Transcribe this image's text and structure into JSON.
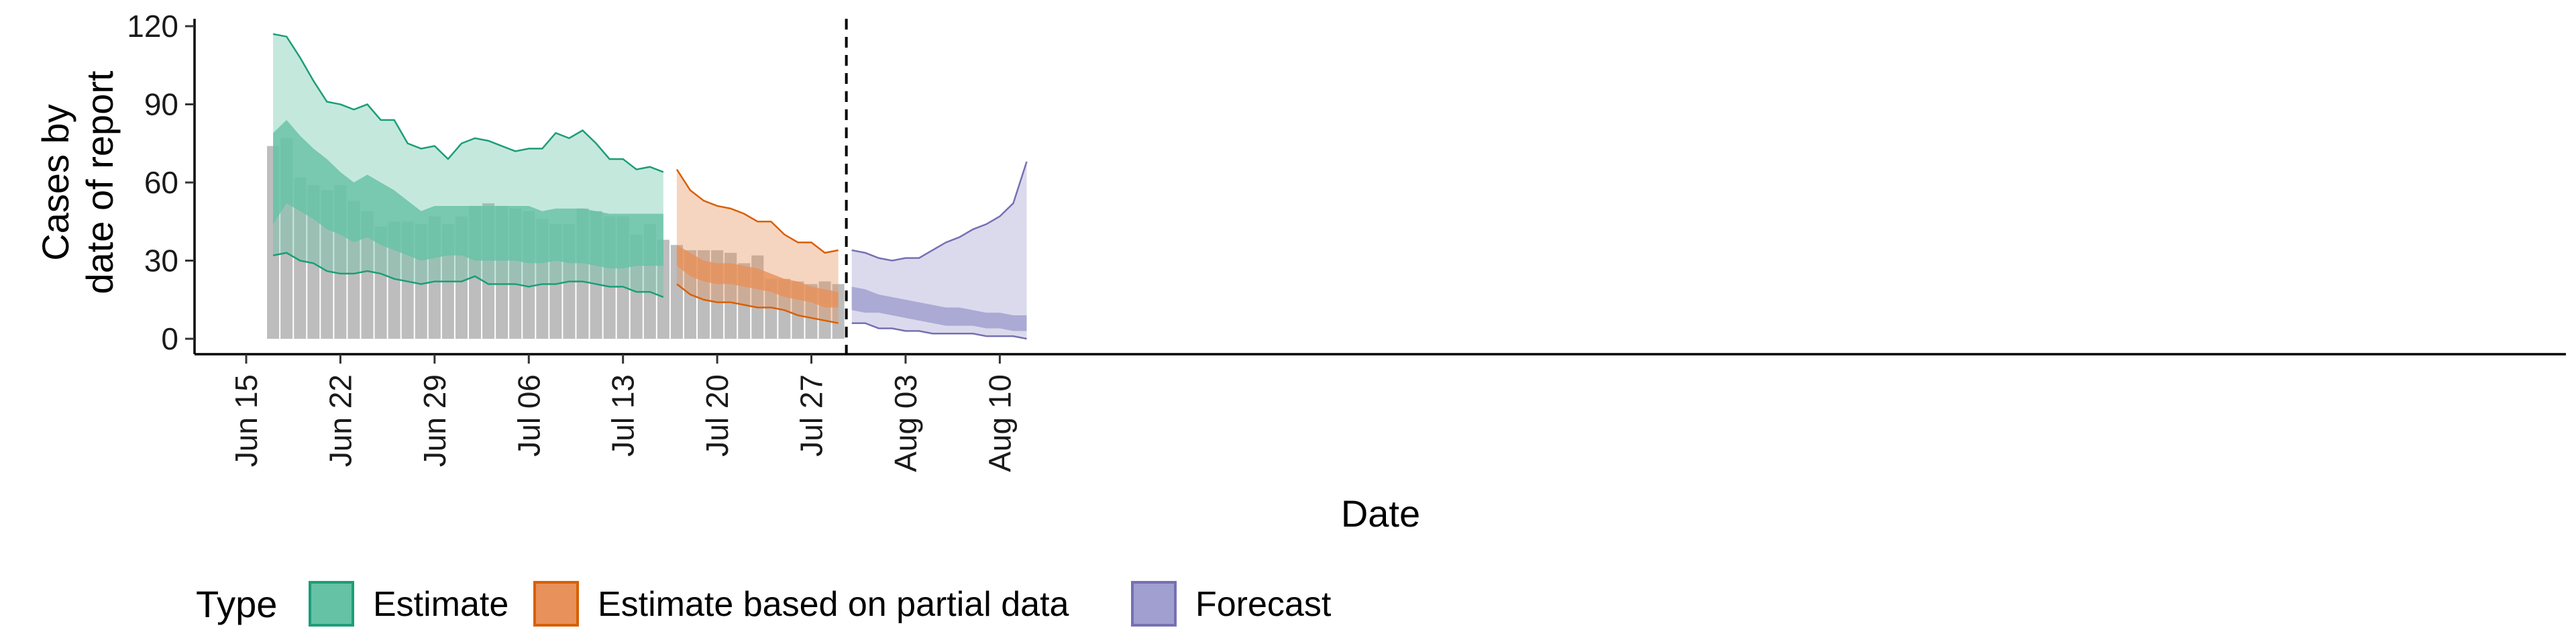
{
  "chart_data": {
    "type": "area",
    "xlabel": "Date",
    "ylabel_lines": [
      "Cases by",
      "date of report"
    ],
    "ylim": [
      0,
      125
    ],
    "y_ticks": [
      0,
      30,
      60,
      90,
      120
    ],
    "x_tick_labels": [
      "Jun 15",
      "Jun 22",
      "Jun 29",
      "Jul 06",
      "Jul 13",
      "Jul 20",
      "Jul 27",
      "Aug 03",
      "Aug 10"
    ],
    "x_tick_dates": [
      "2020-06-15",
      "2020-06-22",
      "2020-06-29",
      "2020-07-06",
      "2020-07-13",
      "2020-07-20",
      "2020-07-27",
      "2020-08-03",
      "2020-08-10"
    ],
    "x_range": [
      "2020-06-15",
      "2020-08-14"
    ],
    "vline_date": "2020-07-29",
    "grid": false,
    "legend": {
      "title": "Type",
      "position": "bottom",
      "entries": [
        {
          "label": "Estimate",
          "fill": "#66c2a5",
          "stroke": "#1b9e77"
        },
        {
          "label": "Estimate based on partial data",
          "fill": "#e8915a",
          "stroke": "#d95f02"
        },
        {
          "label": "Forecast",
          "fill": "#a09fcf",
          "stroke": "#7570b3"
        }
      ]
    },
    "bars": {
      "color": "#bdbdbd",
      "dates": [
        "2020-06-17",
        "2020-06-18",
        "2020-06-19",
        "2020-06-20",
        "2020-06-21",
        "2020-06-22",
        "2020-06-23",
        "2020-06-24",
        "2020-06-25",
        "2020-06-26",
        "2020-06-27",
        "2020-06-28",
        "2020-06-29",
        "2020-06-30",
        "2020-07-01",
        "2020-07-02",
        "2020-07-03",
        "2020-07-04",
        "2020-07-05",
        "2020-07-06",
        "2020-07-07",
        "2020-07-08",
        "2020-07-09",
        "2020-07-10",
        "2020-07-11",
        "2020-07-12",
        "2020-07-13",
        "2020-07-14",
        "2020-07-15",
        "2020-07-16",
        "2020-07-17",
        "2020-07-18",
        "2020-07-19",
        "2020-07-20",
        "2020-07-21",
        "2020-07-22",
        "2020-07-23",
        "2020-07-24",
        "2020-07-25",
        "2020-07-26",
        "2020-07-27",
        "2020-07-28",
        "2020-07-29"
      ],
      "values": [
        74,
        77,
        62,
        59,
        57,
        59,
        53,
        49,
        43,
        45,
        45,
        44,
        47,
        44,
        47,
        51,
        52,
        51,
        50,
        49,
        46,
        44,
        44,
        50,
        49,
        47,
        47,
        40,
        44,
        38,
        36,
        34,
        34,
        34,
        33,
        29,
        32,
        23,
        23,
        22,
        21,
        22,
        21
      ]
    },
    "series": [
      {
        "name": "Estimate",
        "fill": "#66c2a5",
        "stroke": "#1b9e77",
        "dates": [
          "2020-06-17",
          "2020-06-18",
          "2020-06-19",
          "2020-06-20",
          "2020-06-21",
          "2020-06-22",
          "2020-06-23",
          "2020-06-24",
          "2020-06-25",
          "2020-06-26",
          "2020-06-27",
          "2020-06-28",
          "2020-06-29",
          "2020-06-30",
          "2020-07-01",
          "2020-07-02",
          "2020-07-03",
          "2020-07-04",
          "2020-07-05",
          "2020-07-06",
          "2020-07-07",
          "2020-07-08",
          "2020-07-09",
          "2020-07-10",
          "2020-07-11",
          "2020-07-12",
          "2020-07-13",
          "2020-07-14",
          "2020-07-15",
          "2020-07-16"
        ],
        "upper90": [
          117,
          116,
          108,
          99,
          91,
          90,
          88,
          90,
          84,
          84,
          75,
          73,
          74,
          69,
          75,
          77,
          76,
          74,
          72,
          73,
          73,
          79,
          77,
          80,
          75,
          69,
          69,
          65,
          66,
          64
        ],
        "upper50": [
          79,
          84,
          78,
          73,
          69,
          64,
          60,
          63,
          60,
          57,
          53,
          49,
          51,
          51,
          51,
          51,
          51,
          51,
          51,
          51,
          49,
          50,
          50,
          50,
          49,
          48,
          48,
          48,
          48,
          48
        ],
        "lower50": [
          44,
          52,
          49,
          46,
          42,
          40,
          37,
          39,
          36,
          34,
          32,
          30,
          31,
          32,
          32,
          30,
          30,
          30,
          30,
          29,
          29,
          30,
          29,
          29,
          28,
          27,
          27,
          28,
          28,
          28
        ],
        "lower90": [
          32,
          33,
          30,
          29,
          26,
          25,
          25,
          26,
          25,
          23,
          22,
          21,
          22,
          22,
          22,
          24,
          21,
          21,
          21,
          20,
          21,
          21,
          22,
          22,
          21,
          20,
          20,
          18,
          18,
          16
        ]
      },
      {
        "name": "Estimate based on partial data",
        "fill": "#e8915a",
        "stroke": "#d95f02",
        "dates": [
          "2020-07-17",
          "2020-07-18",
          "2020-07-19",
          "2020-07-20",
          "2020-07-21",
          "2020-07-22",
          "2020-07-23",
          "2020-07-24",
          "2020-07-25",
          "2020-07-26",
          "2020-07-27",
          "2020-07-28",
          "2020-07-29"
        ],
        "upper90": [
          65,
          57,
          53,
          51,
          50,
          48,
          45,
          45,
          40,
          37,
          37,
          33,
          34
        ],
        "upper50": [
          36,
          33,
          30,
          29,
          29,
          28,
          27,
          25,
          23,
          22,
          20,
          19,
          18
        ],
        "lower50": [
          28,
          24,
          22,
          21,
          21,
          20,
          19,
          18,
          16,
          15,
          14,
          12,
          12
        ],
        "lower90": [
          21,
          17,
          15,
          14,
          14,
          13,
          12,
          12,
          11,
          9,
          8,
          7,
          6
        ]
      },
      {
        "name": "Forecast",
        "fill": "#a09fcf",
        "stroke": "#7570b3",
        "dates": [
          "2020-07-30",
          "2020-07-31",
          "2020-08-01",
          "2020-08-02",
          "2020-08-03",
          "2020-08-04",
          "2020-08-05",
          "2020-08-06",
          "2020-08-07",
          "2020-08-08",
          "2020-08-09",
          "2020-08-10",
          "2020-08-11",
          "2020-08-12"
        ],
        "upper90": [
          34,
          33,
          31,
          30,
          31,
          31,
          34,
          37,
          39,
          42,
          44,
          47,
          52,
          68
        ],
        "upper50": [
          20,
          19,
          17,
          16,
          15,
          14,
          13,
          12,
          12,
          11,
          10,
          10,
          9,
          9
        ],
        "lower50": [
          11,
          10,
          10,
          9,
          8,
          7,
          6,
          5,
          5,
          5,
          4,
          4,
          3,
          3
        ],
        "lower90": [
          6,
          6,
          4,
          4,
          3,
          3,
          2,
          2,
          2,
          2,
          1,
          1,
          1,
          0
        ]
      }
    ]
  }
}
